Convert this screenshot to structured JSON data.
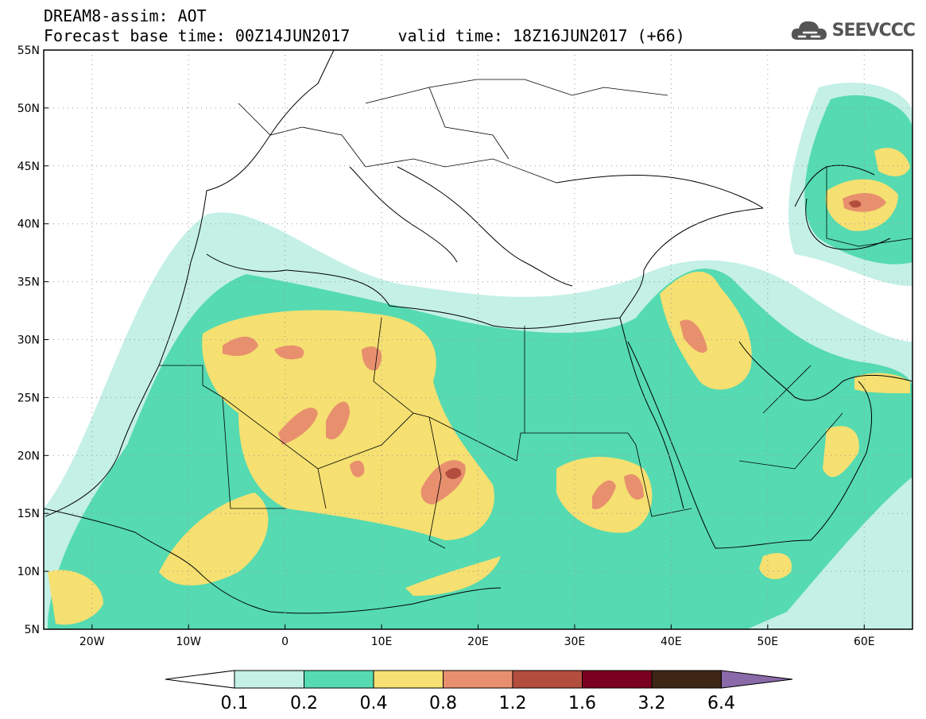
{
  "header": {
    "title": "DREAM8-assim: AOT",
    "subtitle": "Forecast base time: 00Z14JUN2017     valid time: 18Z16JUN2017 (+66)",
    "brand": "SEEVCCC",
    "brand_icon": "cloud-logo-icon"
  },
  "map": {
    "lat_ticks": [
      "55N",
      "50N",
      "45N",
      "40N",
      "35N",
      "30N",
      "25N",
      "20N",
      "15N",
      "10N",
      "5N"
    ],
    "lon_ticks": [
      "20W",
      "10W",
      "0",
      "10E",
      "20E",
      "30E",
      "40E",
      "50E",
      "60E"
    ],
    "lon_range": [
      -25,
      65
    ],
    "lat_range": [
      5,
      55
    ],
    "grid": true
  },
  "colorbar": {
    "labels": [
      "0.1",
      "0.2",
      "0.4",
      "0.8",
      "1.2",
      "1.6",
      "3.2",
      "6.4"
    ],
    "colors": [
      "#ffffff",
      "#c4f0e6",
      "#55dab1",
      "#f5e071",
      "#e8906e",
      "#b34e3e",
      "#7a0020",
      "#3d2616",
      "#8a6aa8"
    ]
  }
}
